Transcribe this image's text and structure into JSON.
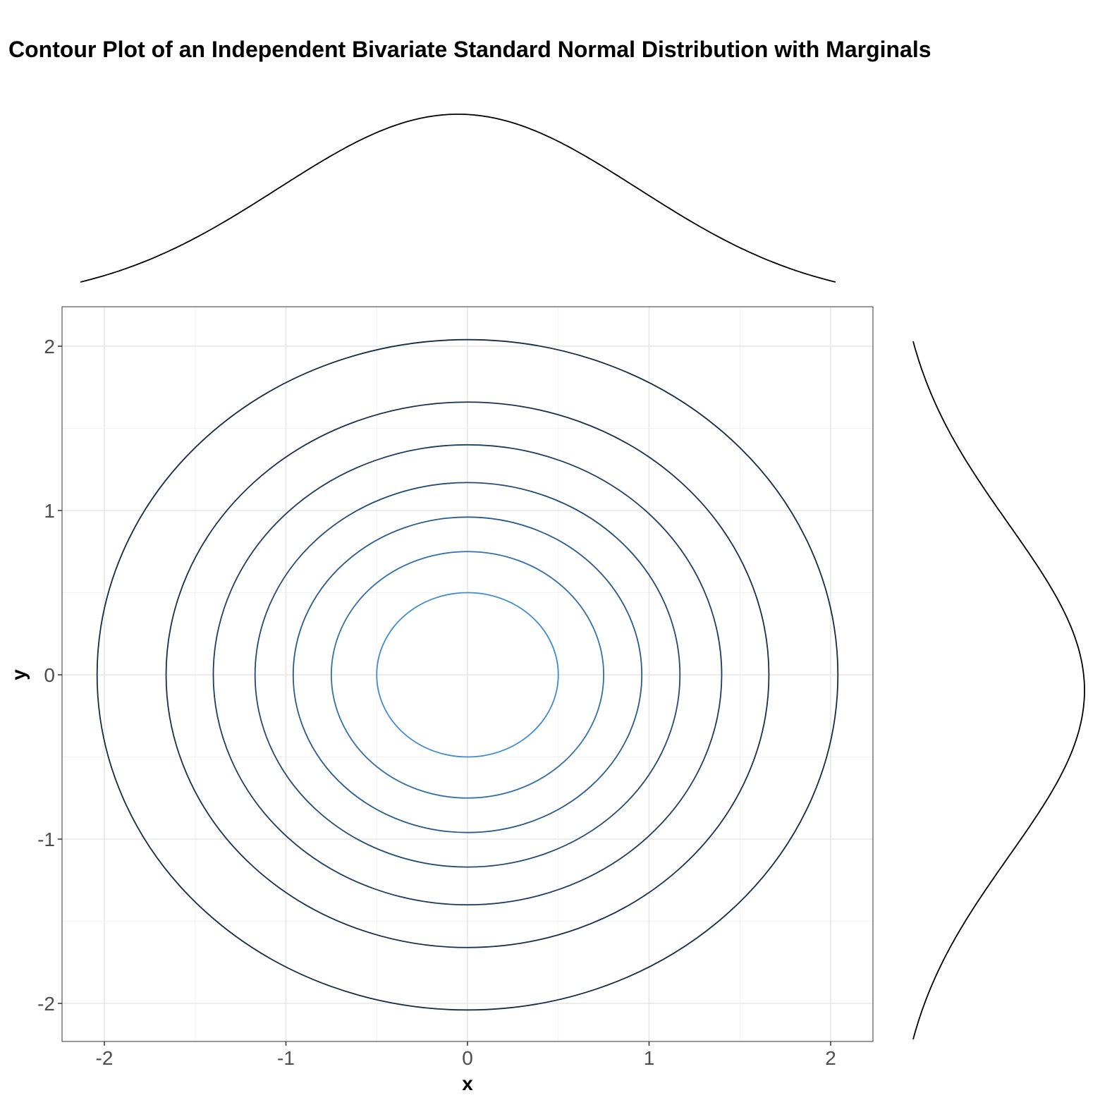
{
  "chart_data": {
    "type": "contour",
    "title": "Contour Plot of an Independent Bivariate Standard Normal Distribution with Marginals",
    "xlabel": "x",
    "ylabel": "y",
    "xlim": [
      -2.25,
      2.25
    ],
    "ylim": [
      -2.25,
      2.25
    ],
    "x_ticks": [
      "-2",
      "-1",
      "0",
      "1",
      "2"
    ],
    "y_ticks": [
      "2",
      "1",
      "0",
      "-1",
      "-2"
    ],
    "grid": true,
    "center": [
      0,
      0
    ],
    "contours": [
      {
        "radius": 2.04,
        "color": "#132b43"
      },
      {
        "radius": 1.66,
        "color": "#18304d"
      },
      {
        "radius": 1.4,
        "color": "#1d3d61"
      },
      {
        "radius": 1.17,
        "color": "#214b74"
      },
      {
        "radius": 0.96,
        "color": "#285b8c"
      },
      {
        "radius": 0.75,
        "color": "#3170a8"
      },
      {
        "radius": 0.5,
        "color": "#3f8ad0"
      }
    ],
    "marginals": {
      "top": {
        "variable": "x",
        "distribution": "normal",
        "mean": 0,
        "sd": 1,
        "range": [
          -2.1,
          2.1
        ]
      },
      "right": {
        "variable": "y",
        "distribution": "normal",
        "mean": 0,
        "sd": 1,
        "range": [
          -2.1,
          2.1
        ]
      }
    }
  }
}
